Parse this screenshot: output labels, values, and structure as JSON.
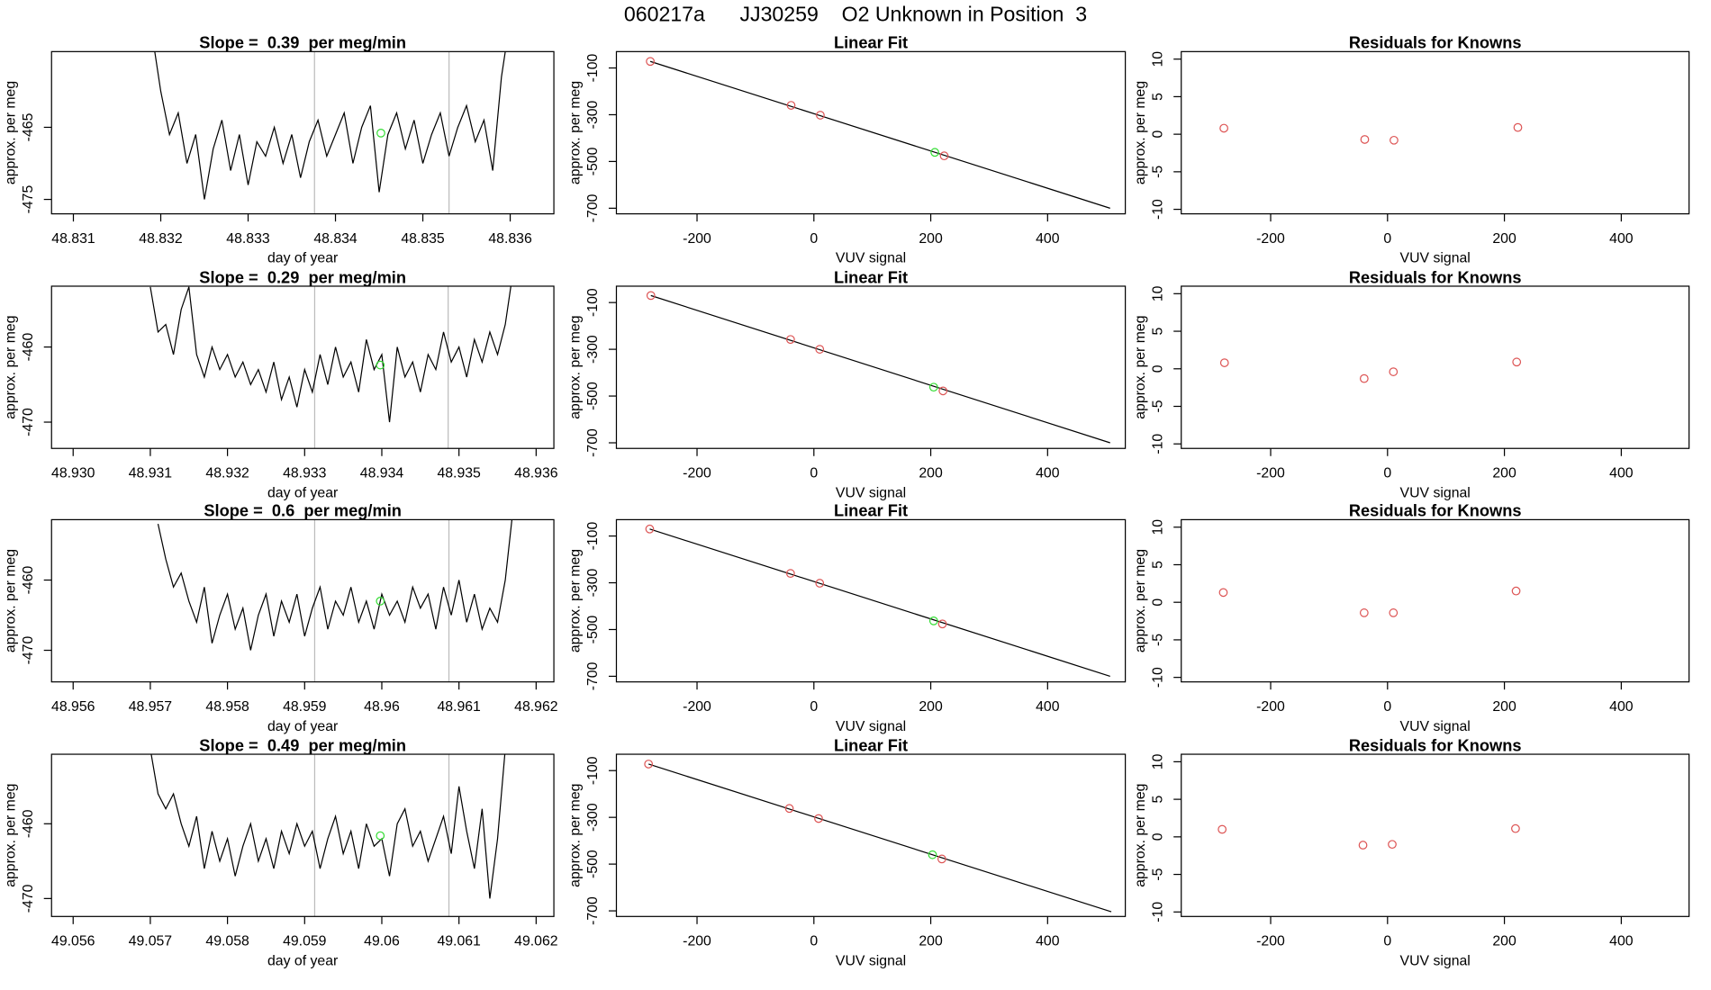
{
  "title": "060217a      JJ30259    O2 Unknown in Position  3",
  "chart_data": [
    {
      "type": "line",
      "title": "Slope =  0.39  per meg/min",
      "xlabel": "day of year",
      "ylabel": "approx. per meg",
      "xlim": [
        48.83075,
        48.8365
      ],
      "ylim": [
        -477,
        -454.5
      ],
      "xticks": [
        48.831,
        48.832,
        48.833,
        48.834,
        48.835,
        48.836
      ],
      "yticks": [
        -465,
        -475
      ],
      "x": [
        48.8319,
        48.832,
        48.8321,
        48.8322,
        48.8323,
        48.8324,
        48.8325,
        48.8326,
        48.8327,
        48.8328,
        48.8329,
        48.833,
        48.8331,
        48.8332,
        48.8333,
        48.8334,
        48.8335,
        48.8336,
        48.8337,
        48.8338,
        48.8339,
        48.834,
        48.8341,
        48.8342,
        48.8343,
        48.8344,
        48.8345,
        48.8346,
        48.8347,
        48.8348,
        48.8349,
        48.835,
        48.8351,
        48.8352,
        48.8353,
        48.8354,
        48.8355,
        48.8356,
        48.8357,
        48.8358,
        48.8359,
        48.836
      ],
      "values": [
        -452,
        -460,
        -466,
        -463,
        -470,
        -466,
        -475,
        -468,
        -464,
        -471,
        -466,
        -473,
        -467,
        -469,
        -465,
        -470,
        -466,
        -472,
        -467,
        -464,
        -469,
        -466,
        -463,
        -470,
        -465,
        -462,
        -474,
        -466,
        -463,
        -468,
        -464,
        -470,
        -466,
        -463,
        -469,
        -465,
        -462,
        -467,
        -464,
        -471,
        -458,
        -450
      ],
      "color": "#000000",
      "vlines": [
        48.83376,
        48.8353
      ],
      "vline_color": "#bbbbbb",
      "highlight": {
        "x": 48.83452,
        "y": -465.8,
        "color": "#33dd33"
      }
    },
    {
      "type": "scatter",
      "title": "Linear Fit",
      "xlabel": "VUV signal",
      "ylabel": "approx. per meg",
      "xlim": [
        -338,
        533
      ],
      "ylim": [
        -724,
        -30
      ],
      "xticks": [
        -200,
        0,
        200,
        400
      ],
      "yticks": [
        -100,
        -300,
        -500,
        -700
      ],
      "series": [
        {
          "color": "#dd5555",
          "x": [
            -280,
            -39,
            11,
            223
          ],
          "values": [
            -72,
            -260,
            -302,
            -476
          ]
        },
        {
          "color": "#33dd33",
          "x": [
            207
          ],
          "values": [
            -461
          ]
        }
      ],
      "fit_line": {
        "x": [
          -280,
          507
        ],
        "values": [
          -72,
          -700
        ],
        "color": "#000000"
      }
    },
    {
      "type": "scatter",
      "title": "Residuals for Knowns",
      "xlabel": "VUV signal",
      "ylabel": "approx. per meg",
      "xlim": [
        -353,
        516
      ],
      "ylim": [
        -10.6,
        11
      ],
      "xticks": [
        -200,
        0,
        200,
        400
      ],
      "yticks": [
        -10,
        -5,
        0,
        5,
        10
      ],
      "series": [
        {
          "color": "#dd5555",
          "x": [
            -280,
            -39,
            11,
            223
          ],
          "values": [
            0.8,
            -0.7,
            -0.8,
            0.9
          ]
        }
      ]
    },
    {
      "type": "line",
      "title": "Slope =  0.29  per meg/min",
      "xlabel": "day of year",
      "ylabel": "approx. per meg",
      "xlim": [
        48.92972,
        48.93623
      ],
      "ylim": [
        -473.5,
        -451.9
      ],
      "xticks": [
        {
          "value": 48.93,
          "label": "48.930"
        },
        48.931,
        48.932,
        48.933,
        48.934,
        48.935,
        48.936
      ],
      "yticks": [
        -460,
        -470
      ],
      "x": [
        48.931,
        48.9311,
        48.9312,
        48.9313,
        48.9314,
        48.9315,
        48.9316,
        48.9317,
        48.9318,
        48.9319,
        48.932,
        48.9321,
        48.9322,
        48.9323,
        48.9324,
        48.9325,
        48.9326,
        48.9327,
        48.9328,
        48.9329,
        48.933,
        48.9331,
        48.9332,
        48.9333,
        48.9334,
        48.9335,
        48.9336,
        48.9337,
        48.9338,
        48.9339,
        48.934,
        48.9341,
        48.9342,
        48.9343,
        48.9344,
        48.9345,
        48.9346,
        48.9347,
        48.9348,
        48.9349,
        48.935,
        48.9351,
        48.9352,
        48.9353,
        48.9354,
        48.9355,
        48.9356,
        48.9357
      ],
      "values": [
        -452,
        -458,
        -457,
        -461,
        -455,
        -452,
        -461,
        -464,
        -460,
        -463,
        -461,
        -464,
        -462,
        -465,
        -463,
        -466,
        -462,
        -467,
        -464,
        -468,
        -463,
        -466,
        -461,
        -465,
        -460,
        -464,
        -462,
        -466,
        -459,
        -463,
        -461,
        -470,
        -460,
        -464,
        -462,
        -466,
        -461,
        -463,
        -458,
        -462,
        -460,
        -464,
        -459,
        -462,
        -458,
        -461,
        -457,
        -450
      ],
      "color": "#000000",
      "vlines": [
        48.93313,
        48.93486
      ],
      "vline_color": "#bbbbbb",
      "highlight": {
        "x": 48.93398,
        "y": -462.4,
        "color": "#33dd33"
      }
    },
    {
      "type": "scatter",
      "title": "Linear Fit",
      "xlabel": "VUV signal",
      "ylabel": "approx. per meg",
      "xlim": [
        -338,
        533
      ],
      "ylim": [
        -724,
        -30
      ],
      "xticks": [
        -200,
        0,
        200,
        400
      ],
      "yticks": [
        -100,
        -300,
        -500,
        -700
      ],
      "series": [
        {
          "color": "#dd5555",
          "x": [
            -279,
            -40,
            10,
            221
          ],
          "values": [
            -70,
            -258,
            -300,
            -478
          ]
        },
        {
          "color": "#33dd33",
          "x": [
            205
          ],
          "values": [
            -462
          ]
        }
      ],
      "fit_line": {
        "x": [
          -279,
          507
        ],
        "values": [
          -70,
          -700
        ],
        "color": "#000000"
      }
    },
    {
      "type": "scatter",
      "title": "Residuals for Knowns",
      "xlabel": "VUV signal",
      "ylabel": "approx. per meg",
      "xlim": [
        -353,
        516
      ],
      "ylim": [
        -10.6,
        11
      ],
      "xticks": [
        -200,
        0,
        200,
        400
      ],
      "yticks": [
        -10,
        -5,
        0,
        5,
        10
      ],
      "series": [
        {
          "color": "#dd5555",
          "x": [
            -279,
            -40,
            10,
            221
          ],
          "values": [
            0.8,
            -1.3,
            -0.4,
            0.9
          ]
        }
      ]
    },
    {
      "type": "line",
      "title": "Slope =  0.6  per meg/min",
      "xlabel": "day of year",
      "ylabel": "approx. per meg",
      "xlim": [
        48.95572,
        48.96223
      ],
      "ylim": [
        -474.5,
        -451.4
      ],
      "xticks": [
        48.956,
        48.957,
        48.958,
        48.959,
        48.96,
        48.961,
        48.962
      ],
      "yticks": [
        -460,
        -470
      ],
      "x": [
        48.9571,
        48.9572,
        48.9573,
        48.9574,
        48.9575,
        48.9576,
        48.9577,
        48.9578,
        48.9579,
        48.958,
        48.9581,
        48.9582,
        48.9583,
        48.9584,
        48.9585,
        48.9586,
        48.9587,
        48.9588,
        48.9589,
        48.959,
        48.9591,
        48.9592,
        48.9593,
        48.9594,
        48.9595,
        48.9596,
        48.9597,
        48.9598,
        48.9599,
        48.96,
        48.9601,
        48.9602,
        48.9603,
        48.9604,
        48.9605,
        48.9606,
        48.9607,
        48.9608,
        48.9609,
        48.961,
        48.9611,
        48.9612,
        48.9613,
        48.9614,
        48.9615,
        48.9616,
        48.9617
      ],
      "values": [
        -452,
        -457,
        -461,
        -459,
        -463,
        -466,
        -461,
        -469,
        -465,
        -462,
        -467,
        -464,
        -470,
        -465,
        -462,
        -468,
        -463,
        -466,
        -462,
        -468,
        -464,
        -461,
        -467,
        -463,
        -465,
        -461,
        -466,
        -463,
        -467,
        -462,
        -465,
        -463,
        -466,
        -461,
        -464,
        -462,
        -467,
        -461,
        -465,
        -460,
        -466,
        -462,
        -467,
        -464,
        -466,
        -460,
        -450
      ],
      "color": "#000000",
      "vlines": [
        48.95913,
        48.96087
      ],
      "vline_color": "#bbbbbb",
      "highlight": {
        "x": 48.95998,
        "y": -463,
        "color": "#33dd33"
      }
    },
    {
      "type": "scatter",
      "title": "Linear Fit",
      "xlabel": "VUV signal",
      "ylabel": "approx. per meg",
      "xlim": [
        -338,
        533
      ],
      "ylim": [
        -724,
        -30
      ],
      "xticks": [
        -200,
        0,
        200,
        400
      ],
      "yticks": [
        -100,
        -300,
        -500,
        -700
      ],
      "series": [
        {
          "color": "#dd5555",
          "x": [
            -281,
            -40,
            10,
            220
          ],
          "values": [
            -70,
            -260,
            -302,
            -476
          ]
        },
        {
          "color": "#33dd33",
          "x": [
            205
          ],
          "values": [
            -463
          ]
        }
      ],
      "fit_line": {
        "x": [
          -281,
          507
        ],
        "values": [
          -70,
          -700
        ],
        "color": "#000000"
      }
    },
    {
      "type": "scatter",
      "title": "Residuals for Knowns",
      "xlabel": "VUV signal",
      "ylabel": "approx. per meg",
      "xlim": [
        -353,
        516
      ],
      "ylim": [
        -10.6,
        11
      ],
      "xticks": [
        -200,
        0,
        200,
        400
      ],
      "yticks": [
        -10,
        -5,
        0,
        5,
        10
      ],
      "series": [
        {
          "color": "#dd5555",
          "x": [
            -281,
            -40,
            10,
            220
          ],
          "values": [
            1.3,
            -1.4,
            -1.4,
            1.5
          ]
        }
      ]
    },
    {
      "type": "line",
      "title": "Slope =  0.49  per meg/min",
      "xlabel": "day of year",
      "ylabel": "approx. per meg",
      "xlim": [
        49.05572,
        49.06223
      ],
      "ylim": [
        -472.4,
        -450.7
      ],
      "xticks": [
        49.056,
        49.057,
        49.058,
        49.059,
        49.06,
        49.061,
        49.062
      ],
      "yticks": [
        -460,
        -470
      ],
      "x": [
        49.057,
        49.0571,
        49.0572,
        49.0573,
        49.0574,
        49.0575,
        49.0576,
        49.0577,
        49.0578,
        49.0579,
        49.058,
        49.0581,
        49.0582,
        49.0583,
        49.0584,
        49.0585,
        49.0586,
        49.0587,
        49.0588,
        49.0589,
        49.059,
        49.0591,
        49.0592,
        49.0593,
        49.0594,
        49.0595,
        49.0596,
        49.0597,
        49.0598,
        49.0599,
        49.06,
        49.0601,
        49.0602,
        49.0603,
        49.0604,
        49.0605,
        49.0606,
        49.0607,
        49.0608,
        49.0609,
        49.061,
        49.0611,
        49.0612,
        49.0613,
        49.0614,
        49.0615,
        49.0616
      ],
      "values": [
        -450,
        -456,
        -458,
        -456,
        -460,
        -463,
        -459,
        -466,
        -461,
        -465,
        -462,
        -467,
        -463,
        -460,
        -465,
        -462,
        -466,
        -461,
        -464,
        -460,
        -463,
        -461,
        -466,
        -462,
        -459,
        -464,
        -461,
        -466,
        -460,
        -463,
        -462,
        -467,
        -460,
        -458,
        -463,
        -461,
        -465,
        -462,
        -459,
        -464,
        -455,
        -461,
        -466,
        -458,
        -470,
        -462,
        -450
      ],
      "color": "#000000",
      "vlines": [
        49.05913,
        49.06087
      ],
      "vline_color": "#bbbbbb",
      "highlight": {
        "x": 49.05998,
        "y": -461.6,
        "color": "#33dd33"
      }
    },
    {
      "type": "scatter",
      "title": "Linear Fit",
      "xlabel": "VUV signal",
      "ylabel": "approx. per meg",
      "xlim": [
        -338,
        533
      ],
      "ylim": [
        -724,
        -30
      ],
      "xticks": [
        -200,
        0,
        200,
        400
      ],
      "yticks": [
        -100,
        -300,
        -500,
        -700
      ],
      "series": [
        {
          "color": "#dd5555",
          "x": [
            -283,
            -42,
            8,
            219
          ],
          "values": [
            -72,
            -262,
            -305,
            -478
          ]
        },
        {
          "color": "#33dd33",
          "x": [
            203
          ],
          "values": [
            -460
          ]
        }
      ],
      "fit_line": {
        "x": [
          -283,
          509
        ],
        "values": [
          -72,
          -704
        ],
        "color": "#000000"
      }
    },
    {
      "type": "scatter",
      "title": "Residuals for Knowns",
      "xlabel": "VUV signal",
      "ylabel": "approx. per meg",
      "xlim": [
        -353,
        516
      ],
      "ylim": [
        -10.6,
        11
      ],
      "xticks": [
        -200,
        0,
        200,
        400
      ],
      "yticks": [
        -10,
        -5,
        0,
        5,
        10
      ],
      "series": [
        {
          "color": "#dd5555",
          "x": [
            -283,
            -42,
            8,
            219
          ],
          "values": [
            1.0,
            -1.1,
            -1.0,
            1.1
          ]
        }
      ]
    }
  ]
}
